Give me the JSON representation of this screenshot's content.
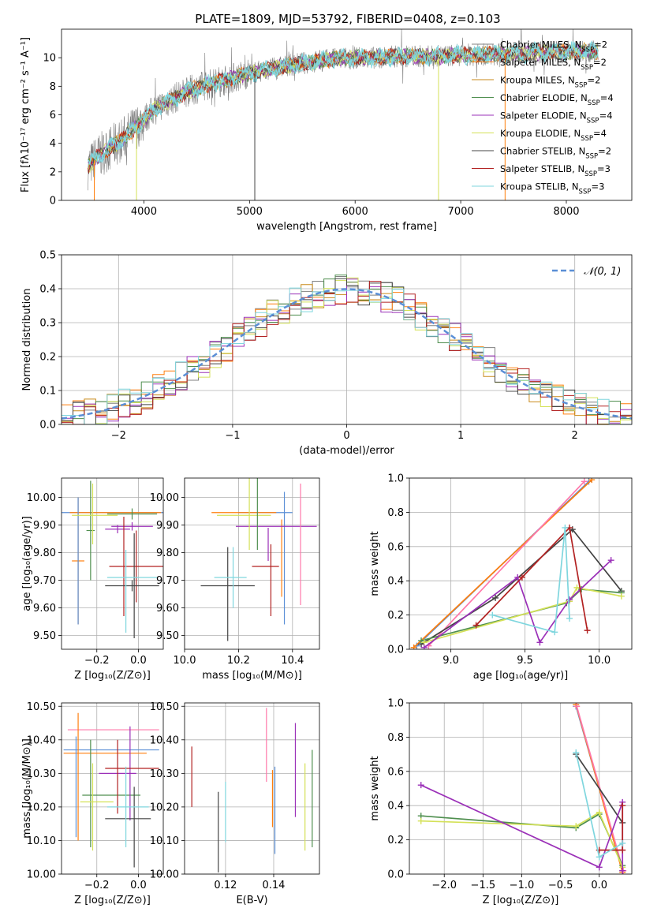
{
  "figure_title": "PLATE=1809, MJD=53792, FIBERID=0408, z=0.103",
  "chart_data": [
    {
      "id": "spectrum",
      "type": "line",
      "title": "PLATE=1809, MJD=53792, FIBERID=0408, z=0.103",
      "xlabel": "wavelength [Angstrom, rest frame]",
      "ylabel": "Flux [fλ10⁻¹⁷ erg cm⁻² s⁻¹ A⁻¹]",
      "xlim": [
        3220,
        8620
      ],
      "ylim": [
        0,
        12
      ],
      "xticks": [
        4000,
        5000,
        6000,
        7000,
        8000
      ],
      "yticks": [
        0,
        2,
        4,
        6,
        8,
        10
      ],
      "grid": false,
      "legend_position": "right",
      "continuum_x": [
        3470,
        3550,
        3650,
        3800,
        3950,
        4100,
        4250,
        4400,
        4600,
        4800,
        5000,
        5200,
        5400,
        5600,
        5800,
        6000,
        6200,
        6400,
        6600,
        6800,
        7000,
        7200,
        7400,
        7600,
        7800,
        8000,
        8200,
        8300
      ],
      "continuum_y": [
        2.3,
        3.0,
        3.5,
        4.3,
        5.3,
        6.4,
        7.0,
        7.6,
        8.1,
        8.5,
        8.9,
        9.2,
        9.5,
        9.7,
        9.9,
        10.0,
        10.0,
        10.1,
        10.1,
        10.1,
        10.2,
        10.2,
        10.3,
        10.3,
        10.4,
        10.4,
        10.5,
        10.4
      ],
      "series": [
        {
          "name": "Chabrier MILES, N_SSP=2",
          "color": "#808080"
        },
        {
          "name": "Salpeter MILES, N_SSP=2",
          "color": "#ff7f0e"
        },
        {
          "name": "Kroupa MILES, N_SSP=2",
          "color": "#c98a1a"
        },
        {
          "name": "Chabrier ELODIE, N_SSP=4",
          "color": "#4f8f4f"
        },
        {
          "name": "Salpeter ELODIE, N_SSP=4",
          "color": "#9b30b8"
        },
        {
          "name": "Kroupa ELODIE, N_SSP=4",
          "color": "#d4e157"
        },
        {
          "name": "Chabrier STELIB, N_SSP=2",
          "color": "#444444"
        },
        {
          "name": "Salpeter STELIB, N_SSP=3",
          "color": "#b22222"
        },
        {
          "name": "Kroupa STELIB, N_SSP=3",
          "color": "#7fd6de"
        }
      ],
      "drops": [
        {
          "x": 5050,
          "color": "#444444"
        },
        {
          "x": 6790,
          "color": "#d4e157"
        },
        {
          "x": 7420,
          "color": "#ff7f0e"
        },
        {
          "x": 3530,
          "color": "#ff7f0e"
        },
        {
          "x": 3930,
          "color": "#d4e157"
        }
      ]
    },
    {
      "id": "residuals",
      "type": "histogram",
      "xlabel": "(data-model)/error",
      "ylabel": "Normed distribution",
      "xlim": [
        -2.5,
        2.5
      ],
      "ylim": [
        0,
        0.5
      ],
      "xticks": [
        -2,
        -1,
        0,
        1,
        2
      ],
      "yticks": [
        0.0,
        0.1,
        0.2,
        0.3,
        0.4,
        0.5
      ],
      "grid": true,
      "bin_width": 0.1,
      "legend": "𝒩(0, 1)",
      "legend_position": "top-right",
      "reference_curve": "normal pdf, mean 0, sigma 1"
    },
    {
      "id": "z-age",
      "type": "errorbar",
      "xlabel": "Z [log₁₀(Z/Z⊙)]",
      "ylabel": "age  [log₁₀(age/yr)]",
      "xlim": [
        -0.37,
        0.12
      ],
      "ylim": [
        9.45,
        10.07
      ],
      "xticks": [
        -0.2,
        0.0
      ],
      "yticks": [
        9.5,
        9.6,
        9.7,
        9.8,
        9.9,
        10.0
      ],
      "grid": true,
      "points": [
        {
          "x": -0.3,
          "xerr": 0.43,
          "y": 9.945,
          "yerr": 0.005,
          "color": "#5b8fd6"
        },
        {
          "x": -0.11,
          "xerr": 0.22,
          "y": 9.945,
          "yerr": 0.005,
          "color": "#ff7f0e"
        },
        {
          "x": -0.29,
          "xerr": 0.03,
          "y": 9.77,
          "yerr": 0.23,
          "color": "#ff7f0e"
        },
        {
          "x": -0.29,
          "xerr": 0.01,
          "y": 9.77,
          "yerr": 0.23,
          "color": "#5b8fd6"
        },
        {
          "x": -0.03,
          "xerr": 0.12,
          "y": 9.94,
          "yerr": 0.02,
          "color": "#4f8f4f"
        },
        {
          "x": -0.23,
          "xerr": 0.02,
          "y": 9.88,
          "yerr": 0.18,
          "color": "#4f8f4f"
        },
        {
          "x": -0.1,
          "xerr": 0.06,
          "y": 9.885,
          "yerr": 0.015,
          "color": "#9b30b8"
        },
        {
          "x": -0.21,
          "xerr": 0.11,
          "y": 9.935,
          "yerr": 0.005,
          "color": "#d4e157"
        },
        {
          "x": -0.22,
          "xerr": 0.01,
          "y": 9.94,
          "yerr": 0.11,
          "color": "#d4e157"
        },
        {
          "x": -0.03,
          "xerr": 0.1,
          "y": 9.895,
          "yerr": 0.015,
          "color": "#9b30b8"
        },
        {
          "x": -0.01,
          "xerr": 0.13,
          "y": 9.75,
          "yerr": 0.13,
          "color": "#b22222"
        },
        {
          "x": -0.07,
          "xerr": 0.01,
          "y": 9.75,
          "yerr": 0.18,
          "color": "#b22222"
        },
        {
          "x": -0.03,
          "xerr": 0.13,
          "y": 9.68,
          "yerr": 0.02,
          "color": "#444444"
        },
        {
          "x": -0.02,
          "xerr": 0.01,
          "y": 9.68,
          "yerr": 0.19,
          "color": "#444444"
        },
        {
          "x": -0.03,
          "xerr": 0.12,
          "y": 9.71,
          "yerr": 0.005,
          "color": "#7fd6de"
        },
        {
          "x": -0.06,
          "xerr": 0.01,
          "y": 9.66,
          "yerr": 0.15,
          "color": "#7fd6de"
        }
      ]
    },
    {
      "id": "mass-age",
      "type": "errorbar",
      "xlabel": "mass [log₁₀(M/M⊙)]",
      "ylabel": "",
      "xlim": [
        10.0,
        10.5
      ],
      "ylim": [
        9.45,
        10.07
      ],
      "xticks": [
        10.0,
        10.2,
        10.4
      ],
      "yticks": [
        9.5,
        9.6,
        9.7,
        9.8,
        9.9,
        10.0
      ],
      "grid": true,
      "points": [
        {
          "x": 10.3,
          "xerr": 0.1,
          "y": 9.945,
          "yerr": 0.005,
          "color": "#5b8fd6"
        },
        {
          "x": 10.22,
          "xerr": 0.12,
          "y": 9.945,
          "yerr": 0.005,
          "color": "#ff7f0e"
        },
        {
          "x": 10.37,
          "xerr": 0.01,
          "y": 9.78,
          "yerr": 0.24,
          "color": "#5b8fd6"
        },
        {
          "x": 10.36,
          "xerr": 0.01,
          "y": 9.78,
          "yerr": 0.14,
          "color": "#ff7f0e"
        },
        {
          "x": 10.34,
          "xerr": 0.15,
          "y": 9.895,
          "yerr": 0.005,
          "color": "#9b30b8"
        },
        {
          "x": 10.22,
          "xerr": 0.1,
          "y": 9.935,
          "yerr": 0.005,
          "color": "#d4e157"
        },
        {
          "x": 10.24,
          "xerr": 0.01,
          "y": 9.94,
          "yerr": 0.13,
          "color": "#d4e157"
        },
        {
          "x": 10.27,
          "xerr": 0.01,
          "y": 9.94,
          "yerr": 0.13,
          "color": "#4f8f4f"
        },
        {
          "x": 10.43,
          "xerr": 0.01,
          "y": 9.83,
          "yerr": 0.22,
          "color": "#ff77aa"
        },
        {
          "x": 10.31,
          "xerr": 0.01,
          "y": 9.83,
          "yerr": 0.06,
          "color": "#9b30b8"
        },
        {
          "x": 10.3,
          "xerr": 0.05,
          "y": 9.75,
          "yerr": 0.001,
          "color": "#b22222"
        },
        {
          "x": 10.32,
          "xerr": 0.01,
          "y": 9.7,
          "yerr": 0.13,
          "color": "#b22222"
        },
        {
          "x": 10.16,
          "xerr": 0.1,
          "y": 9.68,
          "yerr": 0.001,
          "color": "#444444"
        },
        {
          "x": 10.16,
          "xerr": 0.01,
          "y": 9.65,
          "yerr": 0.17,
          "color": "#444444"
        },
        {
          "x": 10.17,
          "xerr": 0.06,
          "y": 9.71,
          "yerr": 0.001,
          "color": "#7fd6de"
        },
        {
          "x": 10.18,
          "xerr": 0.01,
          "y": 9.71,
          "yerr": 0.11,
          "color": "#7fd6de"
        }
      ]
    },
    {
      "id": "age-weight",
      "type": "line",
      "xlabel": "age  [log₁₀(age/yr)]",
      "ylabel": "mass weight",
      "xlim": [
        8.72,
        10.22
      ],
      "ylim": [
        0,
        1
      ],
      "xticks": [
        9.0,
        9.5,
        10.0
      ],
      "yticks": [
        0.0,
        0.2,
        0.4,
        0.6,
        0.8,
        1.0
      ],
      "grid": true,
      "series": [
        {
          "color": "#5b8fd6",
          "x": [
            8.77,
            9.93
          ],
          "y": [
            0.02,
            0.98
          ]
        },
        {
          "color": "#ff7f0e",
          "x": [
            8.75,
            9.95
          ],
          "y": [
            0.01,
            0.99
          ]
        },
        {
          "color": "#ff77aa",
          "x": [
            8.85,
            9.9
          ],
          "y": [
            0.02,
            0.98
          ]
        },
        {
          "color": "#444444",
          "x": [
            8.8,
            9.3,
            9.82,
            10.15
          ],
          "y": [
            0.03,
            0.3,
            0.7,
            0.34
          ]
        },
        {
          "color": "#4f8f4f",
          "x": [
            8.8,
            9.78,
            9.88,
            10.15
          ],
          "y": [
            0.05,
            0.27,
            0.35,
            0.33
          ]
        },
        {
          "color": "#d4e157",
          "x": [
            8.82,
            9.8,
            9.85,
            10.15
          ],
          "y": [
            0.04,
            0.28,
            0.36,
            0.31
          ]
        },
        {
          "color": "#9b30b8",
          "x": [
            8.82,
            9.45,
            9.6,
            9.8,
            10.08
          ],
          "y": [
            0.01,
            0.42,
            0.04,
            0.29,
            0.52
          ]
        },
        {
          "color": "#b22222",
          "x": [
            9.17,
            9.48,
            9.8,
            9.92
          ],
          "y": [
            0.14,
            0.42,
            0.71,
            0.11
          ]
        },
        {
          "color": "#7fd6de",
          "x": [
            9.28,
            9.7,
            9.77,
            9.8
          ],
          "y": [
            0.2,
            0.1,
            0.71,
            0.18
          ]
        }
      ]
    },
    {
      "id": "z-mass",
      "type": "errorbar",
      "xlabel": "Z [log₁₀(Z/Z⊙)]",
      "ylabel": "mass [log₁₀(M/M⊙)]",
      "xlim": [
        -0.37,
        0.12
      ],
      "ylim": [
        10.0,
        10.51
      ],
      "xticks": [
        -0.2,
        0.0
      ],
      "yticks": [
        10.0,
        10.1,
        10.2,
        10.3,
        10.4,
        10.5
      ],
      "grid": true,
      "points": [
        {
          "x": -0.12,
          "xerr": 0.22,
          "y": 10.43,
          "yerr": 0.005,
          "color": "#ff77aa"
        },
        {
          "x": -0.13,
          "xerr": 0.23,
          "y": 10.37,
          "yerr": 0.005,
          "color": "#5b8fd6"
        },
        {
          "x": -0.16,
          "xerr": 0.2,
          "y": 10.36,
          "yerr": 0.005,
          "color": "#ff7f0e"
        },
        {
          "x": -0.3,
          "xerr": 0.01,
          "y": 10.26,
          "yerr": 0.15,
          "color": "#5b8fd6"
        },
        {
          "x": -0.29,
          "xerr": 0.01,
          "y": 10.29,
          "yerr": 0.19,
          "color": "#ff7f0e"
        },
        {
          "x": -0.13,
          "xerr": 0.14,
          "y": 10.235,
          "yerr": 0.005,
          "color": "#4f8f4f"
        },
        {
          "x": -0.23,
          "xerr": 0.01,
          "y": 10.24,
          "yerr": 0.16,
          "color": "#4f8f4f"
        },
        {
          "x": -0.2,
          "xerr": 0.08,
          "y": 10.215,
          "yerr": 0.005,
          "color": "#d4e157"
        },
        {
          "x": -0.22,
          "xerr": 0.01,
          "y": 10.2,
          "yerr": 0.13,
          "color": "#d4e157"
        },
        {
          "x": -0.1,
          "xerr": 0.09,
          "y": 10.3,
          "yerr": 0.005,
          "color": "#9b30b8"
        },
        {
          "x": -0.04,
          "xerr": 0.01,
          "y": 10.3,
          "yerr": 0.14,
          "color": "#9b30b8"
        },
        {
          "x": -0.03,
          "xerr": 0.13,
          "y": 10.315,
          "yerr": 0.005,
          "color": "#b22222"
        },
        {
          "x": -0.1,
          "xerr": 0.01,
          "y": 10.29,
          "yerr": 0.11,
          "color": "#b22222"
        },
        {
          "x": -0.05,
          "xerr": 0.11,
          "y": 10.165,
          "yerr": 0.005,
          "color": "#444444"
        },
        {
          "x": -0.02,
          "xerr": 0.01,
          "y": 10.14,
          "yerr": 0.12,
          "color": "#444444"
        },
        {
          "x": -0.05,
          "xerr": 0.1,
          "y": 10.2,
          "yerr": 0.005,
          "color": "#7fd6de"
        },
        {
          "x": -0.06,
          "xerr": 0.01,
          "y": 10.2,
          "yerr": 0.12,
          "color": "#7fd6de"
        }
      ]
    },
    {
      "id": "ebv-mass",
      "type": "errorbar",
      "xlabel": "E(B-V)",
      "ylabel": "",
      "xlim": [
        0.103,
        0.159
      ],
      "ylim": [
        10.0,
        10.51
      ],
      "xticks": [
        0.12,
        0.14
      ],
      "yticks": [
        10.0,
        10.1,
        10.2,
        10.3,
        10.4,
        10.5
      ],
      "grid": true,
      "points": [
        {
          "x": 0.106,
          "y": 10.29,
          "yerr": 0.09,
          "color": "#b22222"
        },
        {
          "x": 0.117,
          "y": 10.125,
          "yerr": 0.12,
          "color": "#444444"
        },
        {
          "x": 0.12,
          "y": 10.185,
          "yerr": 0.09,
          "color": "#7fd6de"
        },
        {
          "x": 0.137,
          "y": 10.385,
          "yerr": 0.11,
          "color": "#ff77aa"
        },
        {
          "x": 0.1395,
          "y": 10.225,
          "yerr": 0.085,
          "color": "#ff7f0e"
        },
        {
          "x": 0.1405,
          "y": 10.19,
          "yerr": 0.13,
          "color": "#5b8fd6"
        },
        {
          "x": 0.149,
          "y": 10.31,
          "yerr": 0.14,
          "color": "#9b30b8"
        },
        {
          "x": 0.153,
          "y": 10.2,
          "yerr": 0.13,
          "color": "#d4e157"
        },
        {
          "x": 0.156,
          "y": 10.225,
          "yerr": 0.145,
          "color": "#4f8f4f"
        }
      ]
    },
    {
      "id": "z-weight",
      "type": "line",
      "xlabel": "Z [log₁₀(Z/Z⊙)]",
      "ylabel": "mass weight",
      "xlim": [
        -2.45,
        0.42
      ],
      "ylim": [
        0,
        1
      ],
      "xticks": [
        -2.0,
        -1.5,
        -1.0,
        -0.5,
        0.0
      ],
      "yticks": [
        0.0,
        0.2,
        0.4,
        0.6,
        0.8,
        1.0
      ],
      "grid": true,
      "series": [
        {
          "color": "#5b8fd6",
          "x": [
            -0.3,
            0.3
          ],
          "y": [
            0.98,
            0.02
          ]
        },
        {
          "color": "#ff7f0e",
          "x": [
            -0.3,
            0.3
          ],
          "y": [
            0.99,
            0.01
          ]
        },
        {
          "color": "#ff77aa",
          "x": [
            -0.29,
            0.31
          ],
          "y": [
            0.98,
            0.02
          ]
        },
        {
          "color": "#444444",
          "x": [
            -0.3,
            0.3
          ],
          "y": [
            0.7,
            0.3
          ]
        },
        {
          "color": "#4f8f4f",
          "x": [
            -2.3,
            -0.3,
            0.0,
            0.3
          ],
          "y": [
            0.34,
            0.27,
            0.35,
            0.05
          ]
        },
        {
          "color": "#d4e157",
          "x": [
            -2.3,
            -0.3,
            0.0,
            0.3
          ],
          "y": [
            0.31,
            0.28,
            0.36,
            0.04
          ]
        },
        {
          "color": "#9b30b8",
          "x": [
            -2.3,
            0.0,
            0.3,
            0.3
          ],
          "y": [
            0.52,
            0.04,
            0.42,
            0.02
          ]
        },
        {
          "color": "#b22222",
          "x": [
            0.0,
            0.3,
            0.3
          ],
          "y": [
            0.14,
            0.14,
            0.4
          ]
        },
        {
          "color": "#7fd6de",
          "x": [
            -0.3,
            0.0,
            0.3
          ],
          "y": [
            0.71,
            0.1,
            0.18
          ]
        }
      ]
    }
  ]
}
